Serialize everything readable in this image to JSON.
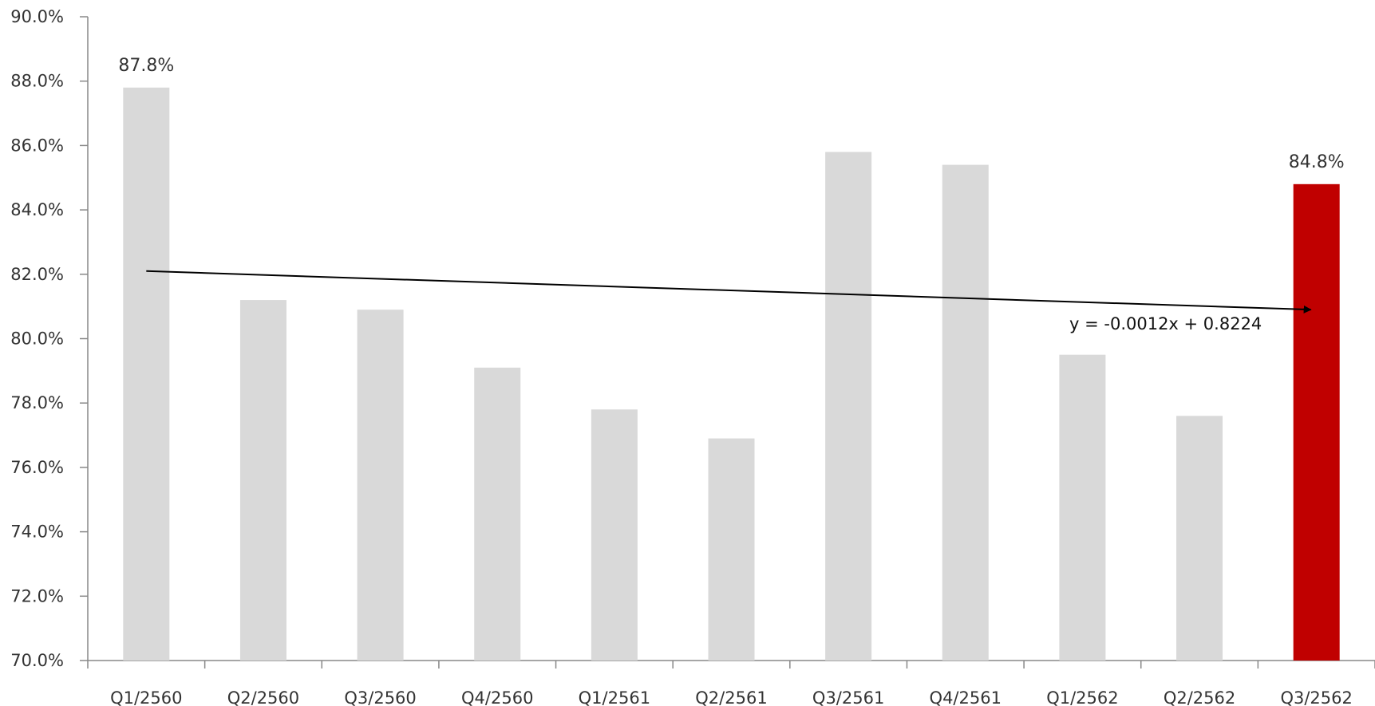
{
  "chart_data": {
    "type": "bar",
    "categories": [
      "Q1/2560",
      "Q2/2560",
      "Q3/2560",
      "Q4/2560",
      "Q1/2561",
      "Q2/2561",
      "Q3/2561",
      "Q4/2561",
      "Q1/2562",
      "Q2/2562",
      "Q3/2562"
    ],
    "values": [
      87.8,
      81.2,
      80.9,
      79.1,
      77.8,
      76.9,
      85.8,
      85.4,
      79.5,
      77.6,
      84.8
    ],
    "value_unit": "%",
    "ylim": [
      70,
      90
    ],
    "yticks": [
      "70.0%",
      "72.0%",
      "74.0%",
      "76.0%",
      "78.0%",
      "80.0%",
      "82.0%",
      "84.0%",
      "86.0%",
      "88.0%",
      "90.0%"
    ],
    "ytick_values": [
      70,
      72,
      74,
      76,
      78,
      80,
      82,
      84,
      86,
      88,
      90
    ],
    "data_labels": [
      {
        "index": 0,
        "text": "87.8%"
      },
      {
        "index": 10,
        "text": "84.8%"
      }
    ],
    "highlight_index": 10,
    "colors": {
      "bar": "#d9d9d9",
      "highlight": "#c00000",
      "axis": "#888888",
      "trend": "#000000"
    },
    "trendline": {
      "equation": "y = -0.0012x + 0.8224",
      "start_value": 82.1,
      "end_value": 80.9,
      "arrow": true
    },
    "grid": false,
    "legend": "none"
  }
}
